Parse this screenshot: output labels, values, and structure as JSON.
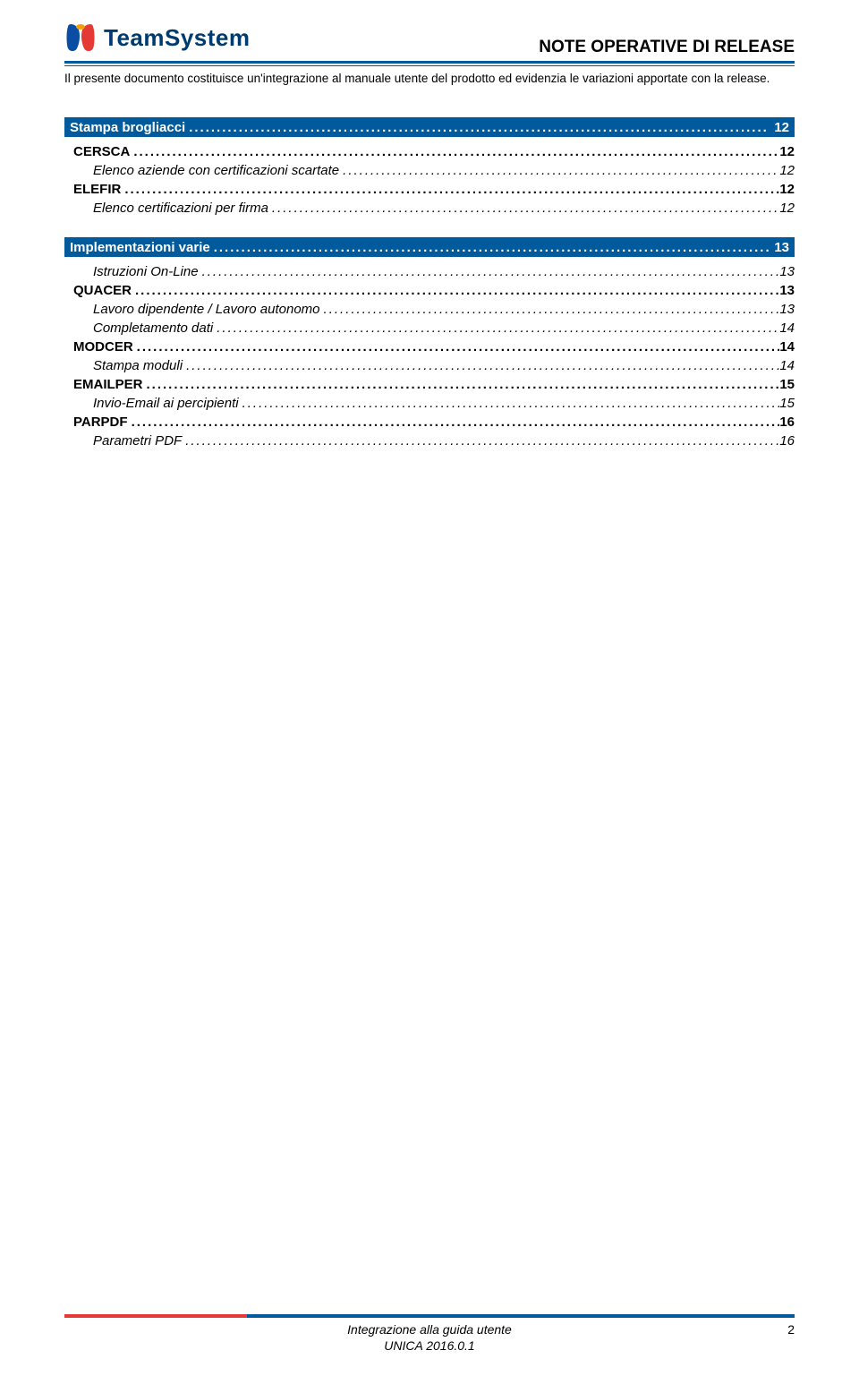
{
  "brand": {
    "name": "TeamSystem"
  },
  "header": {
    "title": "NOTE OPERATIVE DI RELEASE",
    "subtitle": "Il presente documento costituisce un'integrazione al manuale utente del prodotto ed evidenzia le variazioni apportate con la release."
  },
  "colors": {
    "brand_blue": "#005a9c",
    "accent_red": "#e53935",
    "text": "#000000",
    "bg": "#ffffff",
    "logo_text": "#003b70"
  },
  "sections": [
    {
      "title": "Stampa brogliacci",
      "page": "12",
      "items": [
        {
          "level": 1,
          "label": "CERSCA",
          "page": "12"
        },
        {
          "level": 2,
          "label": "Elenco aziende con certificazioni scartate",
          "page": "12"
        },
        {
          "level": 1,
          "label": "ELEFIR",
          "page": "12"
        },
        {
          "level": 2,
          "label": "Elenco certificazioni per firma",
          "page": "12"
        }
      ]
    },
    {
      "title": "Implementazioni varie",
      "page": "13",
      "items": [
        {
          "level": 2,
          "label": "Istruzioni On-Line",
          "page": "13"
        },
        {
          "level": 1,
          "label": "QUACER",
          "page": "13"
        },
        {
          "level": 2,
          "label": "Lavoro dipendente / Lavoro autonomo",
          "page": "13"
        },
        {
          "level": 2,
          "label": "Completamento dati",
          "page": "14"
        },
        {
          "level": 1,
          "label": "MODCER",
          "page": "14"
        },
        {
          "level": 2,
          "label": "Stampa moduli",
          "page": "14"
        },
        {
          "level": 1,
          "label": "EMAILPER",
          "page": "15"
        },
        {
          "level": 2,
          "label": "Invio-Email ai percipienti",
          "page": "15"
        },
        {
          "level": 1,
          "label": "PARPDF",
          "page": "16"
        },
        {
          "level": 2,
          "label": "Parametri PDF",
          "page": "16"
        }
      ]
    }
  ],
  "footer": {
    "line1": "Integrazione alla guida utente",
    "line2": "UNICA 2016.0.1",
    "page_number": "2"
  }
}
